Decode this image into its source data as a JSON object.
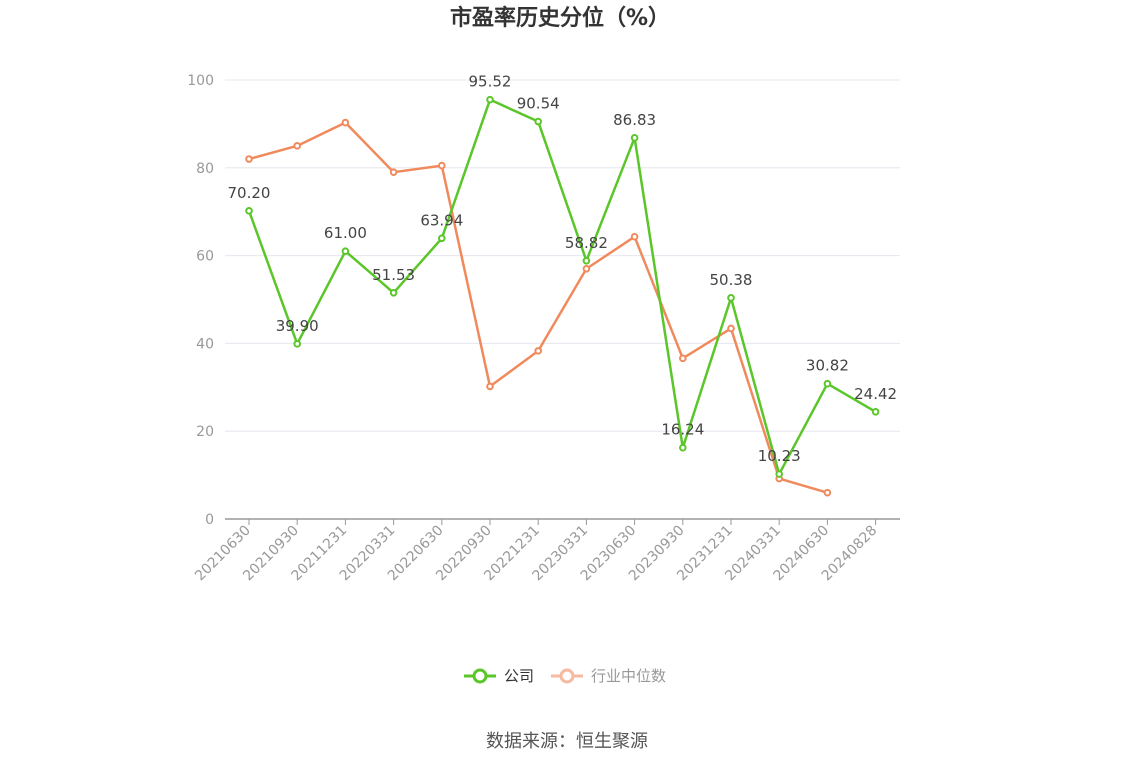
{
  "source_note": "数据来源：恒生聚源",
  "chart_data": {
    "type": "line",
    "title": "市盈率历史分位（%）",
    "categories": [
      "20210630",
      "20210930",
      "20211231",
      "20220331",
      "20220630",
      "20220930",
      "20221231",
      "20230331",
      "20230630",
      "20230930",
      "20231231",
      "20240331",
      "20240630",
      "20240828"
    ],
    "y_ticks": [
      "0",
      "20",
      "40",
      "60",
      "80",
      "100"
    ],
    "ylim": [
      0,
      100
    ],
    "grid": true,
    "legend_position": "bottom-center",
    "series": [
      {
        "name": "公司",
        "color": "#5ac62a",
        "values": [
          70.2,
          39.9,
          61.0,
          51.53,
          63.94,
          95.52,
          90.54,
          58.82,
          86.83,
          16.24,
          50.38,
          10.23,
          30.82,
          24.42
        ],
        "labels": [
          "70.20",
          "39.90",
          "61.00",
          "51.53",
          "63.94",
          "95.52",
          "90.54",
          "58.82",
          "86.83",
          "16.24",
          "50.38",
          "10.23",
          "30.82",
          "24.42"
        ]
      },
      {
        "name": "行业中位数",
        "color": "#f08a5d",
        "legend_color": "#f7b9a0",
        "values": [
          82.0,
          85.0,
          90.3,
          79.0,
          80.5,
          30.2,
          38.3,
          57.0,
          64.3,
          36.6,
          43.4,
          9.2,
          6.0,
          null
        ]
      }
    ]
  }
}
